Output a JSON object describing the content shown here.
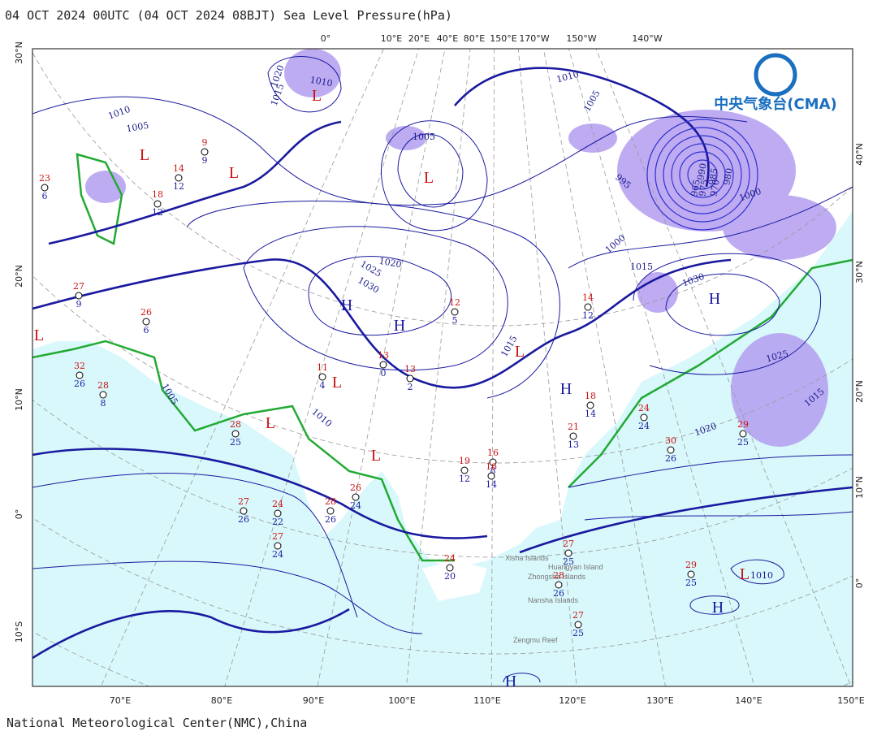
{
  "header": {
    "title": "04 OCT 2024 00UTC  (04 OCT 2024 08BJT) Sea Level Pressure(hPa)"
  },
  "logo": {
    "text": "中央气象台(CMA)"
  },
  "footer": {
    "text": "National Meteorological Center(NMC),China"
  },
  "bottom_axis": [
    "70°E",
    "80°E",
    "90°E",
    "100°E",
    "110°E",
    "120°E",
    "130°E",
    "140°E",
    "150°E"
  ],
  "top_axis": [
    "0°",
    "10°E",
    "20°E",
    "40°E",
    "80°E",
    "150°E",
    "170°W",
    "150°W",
    "140°W"
  ],
  "left_axis": [
    "30°N",
    "20°N",
    "10°N",
    "0°",
    "10°S"
  ],
  "right_axis": [
    "40°N",
    "30°N",
    "20°N",
    "10°N",
    "0°"
  ],
  "pressure_centers": [
    "L",
    "L",
    "L",
    "L",
    "H",
    "H",
    "L",
    "L",
    "L",
    "H",
    "L",
    "H",
    "H",
    "L",
    "L",
    "H"
  ],
  "isobar_labels": [
    1020,
    1010,
    1015,
    1010,
    1005,
    1005,
    1025,
    1030,
    1020,
    1010,
    1005,
    995,
    1000,
    1015,
    1030,
    1025,
    1015,
    1020,
    1010,
    1005,
    1010,
    990,
    985,
    980,
    975,
    970,
    965,
    1000,
    1015
  ],
  "place_labels": [
    "Xisha Islands",
    "Huangyan Island",
    "Zhongsha Islands",
    "Nansha Islands",
    "Zengmu Reef"
  ],
  "stations": [
    [
      27,
      9
    ],
    [
      26,
      6
    ],
    [
      32,
      26
    ],
    [
      28,
      8
    ],
    [
      28,
      25
    ],
    [
      27,
      26
    ],
    [
      24,
      22
    ],
    [
      27,
      24
    ],
    [
      28,
      26
    ],
    [
      26,
      24
    ],
    [
      19,
      12
    ],
    [
      16,
      8
    ],
    [
      24,
      20
    ],
    [
      27,
      25
    ],
    [
      28,
      26
    ],
    [
      27,
      25
    ],
    [
      29,
      25
    ],
    [
      30,
      26
    ],
    [
      29,
      25
    ],
    [
      24,
      24
    ],
    [
      18,
      14
    ],
    [
      14,
      12
    ],
    [
      9,
      9
    ],
    [
      14,
      12
    ],
    [
      18,
      12
    ],
    [
      23,
      6
    ],
    [
      13,
      0
    ],
    [
      13,
      2
    ],
    [
      11,
      4
    ],
    [
      12,
      5
    ],
    [
      21,
      13
    ],
    [
      16,
      14
    ]
  ]
}
